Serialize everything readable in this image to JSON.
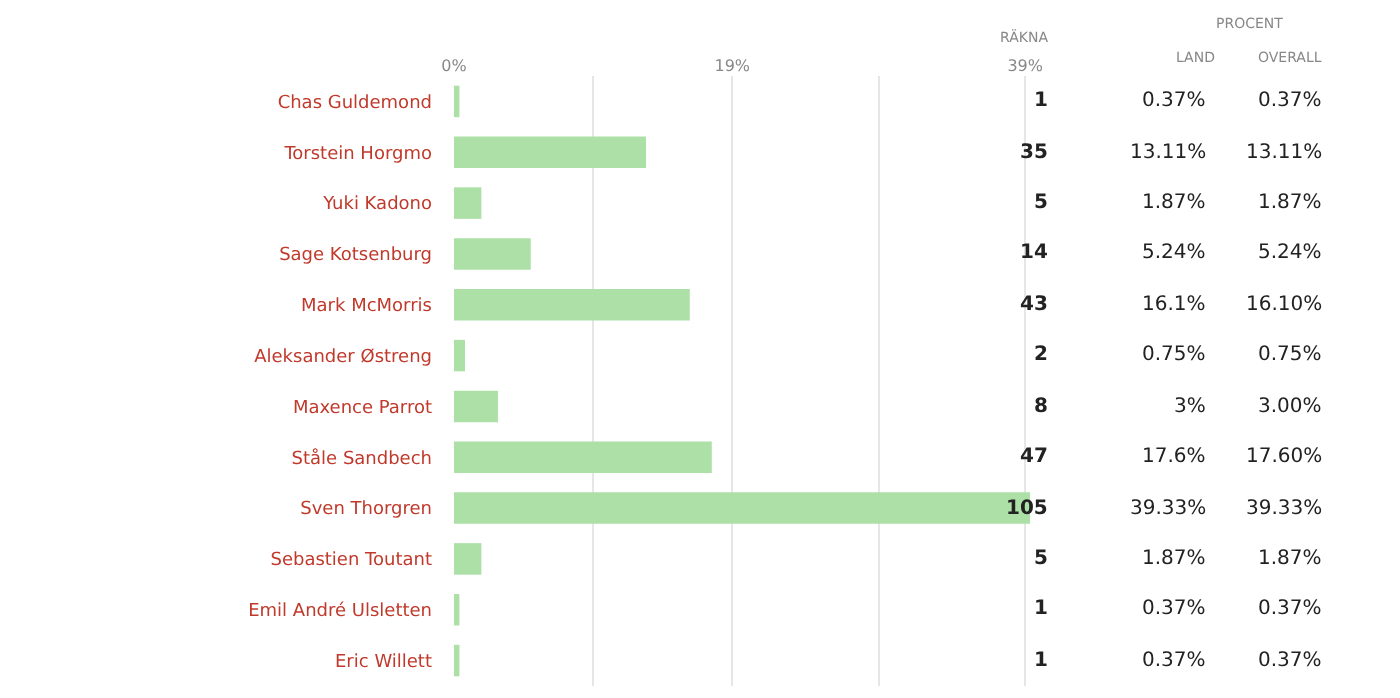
{
  "chart_data": {
    "type": "bar",
    "orientation": "horizontal",
    "categories": [
      "Chas Guldemond",
      "Torstein Horgmo",
      "Yuki Kadono",
      "Sage Kotsenburg",
      "Mark McMorris",
      "Aleksander Østreng",
      "Maxence Parrot",
      "Ståle Sandbech",
      "Sven Thorgren",
      "Sebastien Toutant",
      "Emil André Ulsletten",
      "Eric Willett"
    ],
    "series": [
      {
        "color": "#ace0a6",
        "values": [
          0.37,
          13.11,
          1.87,
          5.24,
          16.1,
          0.75,
          3.0,
          17.6,
          39.33,
          1.87,
          0.37,
          0.37
        ],
        "value_labels": [
          "0.37%",
          "13.11%",
          "1.87%",
          "5.24%",
          "16.10%",
          "0.75%",
          "3.00%",
          "17.60%",
          "39.33%",
          "1.87%",
          "0.37%",
          "0.37%"
        ]
      }
    ],
    "xlim": [
      0,
      39.33
    ],
    "xticks": [
      {
        "value": 0,
        "label": "0%"
      },
      {
        "value": 9.5,
        "label": null
      },
      {
        "value": 19,
        "label": "19%"
      },
      {
        "value": 29,
        "label": null
      },
      {
        "value": 39,
        "label": "39%"
      }
    ],
    "grid": "x",
    "annotations": [
      "RÄKNA",
      "PROCENT",
      "LAND",
      "OVERALL",
      "1",
      "0.37%",
      "35",
      "13.11%",
      "5",
      "1.87%",
      "14",
      "5.24%",
      "43",
      "16.1%",
      "2",
      "0.75%",
      "8",
      "3%",
      "47",
      "17.6%",
      "105",
      "39.33%",
      "5",
      "1.87%",
      "1",
      "0.37%",
      "1",
      "0.37%"
    ]
  }
}
